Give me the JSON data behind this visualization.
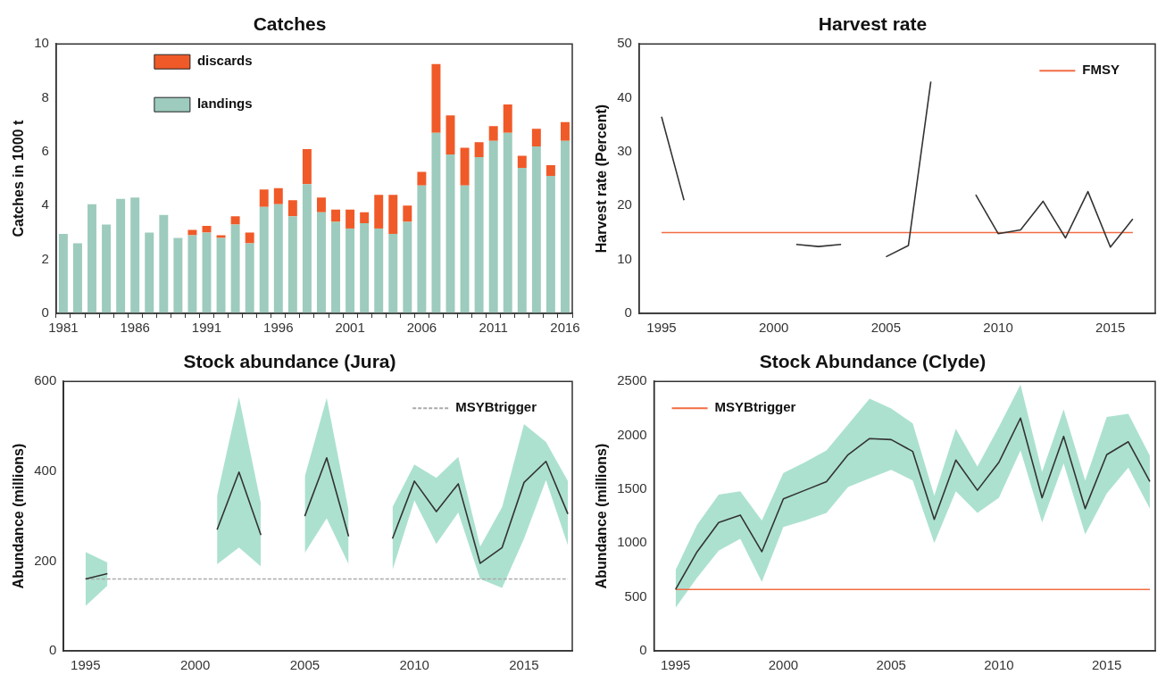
{
  "chart_data": [
    {
      "type": "bar",
      "title": "Catches",
      "ylabel": "Catches in 1000 t",
      "stacked": true,
      "legend": "top left",
      "categories": [
        "1981",
        null,
        null,
        null,
        null,
        "1986",
        null,
        null,
        null,
        null,
        "1991",
        null,
        null,
        null,
        null,
        "1996",
        null,
        null,
        null,
        null,
        "2001",
        null,
        null,
        null,
        null,
        "2006",
        null,
        null,
        null,
        null,
        "2011",
        null,
        null,
        null,
        null,
        "2016"
      ],
      "ylim": [
        0,
        10
      ],
      "yticks": [
        0,
        2,
        4,
        6,
        8,
        10
      ],
      "series": [
        {
          "name": "landings",
          "color": "#9dcbbd",
          "values": [
            2.95,
            2.6,
            4.05,
            3.3,
            4.25,
            4.3,
            3.0,
            3.65,
            2.8,
            2.9,
            3.0,
            2.8,
            3.3,
            2.6,
            3.95,
            4.05,
            3.6,
            4.8,
            3.75,
            3.4,
            3.15,
            3.35,
            3.15,
            2.95,
            3.4,
            4.75,
            6.7,
            5.9,
            4.75,
            5.8,
            6.4,
            6.7,
            5.4,
            6.2,
            5.1,
            6.4
          ]
        },
        {
          "name": "discards",
          "color": "#f05a28",
          "values": [
            0,
            0,
            0,
            0,
            0,
            0,
            0,
            0,
            0,
            0.2,
            0.25,
            0.1,
            0.3,
            0.4,
            0.65,
            0.6,
            0.6,
            1.3,
            0.55,
            0.45,
            0.7,
            0.4,
            1.25,
            1.45,
            0.6,
            0.5,
            2.55,
            1.45,
            1.4,
            0.55,
            0.55,
            1.05,
            0.45,
            0.65,
            0.4,
            0.7
          ]
        }
      ]
    },
    {
      "type": "line",
      "title": "Harvest rate",
      "ylabel": "Harvest rate (Percent)",
      "legend": "top right",
      "x": [
        1995,
        1996,
        1997,
        1998,
        1999,
        2000,
        2001,
        2002,
        2003,
        2004,
        2005,
        2006,
        2007,
        2008,
        2009,
        2010,
        2011,
        2012,
        2013,
        2014,
        2015,
        2016
      ],
      "xlim": [
        1994,
        2017
      ],
      "xticks": [
        1995,
        2000,
        2005,
        2010,
        2015
      ],
      "ylim": [
        0,
        50
      ],
      "yticks": [
        0,
        10,
        20,
        30,
        40,
        50
      ],
      "series": [
        {
          "color": "#333333",
          "values": [
            36.5,
            21,
            null,
            null,
            null,
            null,
            12.8,
            12.4,
            12.8,
            null,
            10.5,
            12.6,
            43,
            null,
            22,
            14.8,
            15.5,
            20.8,
            14.0,
            22.6,
            12.3,
            17.5
          ]
        },
        {
          "name": "FMSY",
          "color": "#f26b43",
          "x": [
            1995,
            2016
          ],
          "values": [
            15,
            15
          ]
        }
      ]
    },
    {
      "type": "line",
      "title": "Stock abundance (Jura)",
      "ylabel": "Abundance (millions)",
      "legend": "top right",
      "x": [
        1995,
        1996,
        1997,
        1998,
        1999,
        2000,
        2001,
        2002,
        2003,
        2004,
        2005,
        2006,
        2007,
        2008,
        2009,
        2010,
        2011,
        2012,
        2013,
        2014,
        2015,
        2016,
        2017
      ],
      "xlim": [
        1994,
        2017.2
      ],
      "xticks": [
        1995,
        2000,
        2005,
        2010,
        2015
      ],
      "ylim": [
        0,
        600
      ],
      "yticks": [
        0,
        200,
        400,
        600
      ],
      "series": [
        {
          "color": "#333333",
          "values": [
            160,
            172,
            null,
            null,
            null,
            null,
            270,
            398,
            258,
            null,
            300,
            430,
            255,
            null,
            250,
            378,
            310,
            372,
            195,
            230,
            375,
            422,
            305
          ],
          "lower": [
            100,
            145,
            null,
            null,
            null,
            null,
            193,
            230,
            188,
            null,
            218,
            295,
            193,
            null,
            180,
            335,
            238,
            308,
            160,
            140,
            250,
            380,
            235
          ],
          "upper": [
            220,
            197,
            null,
            null,
            null,
            null,
            345,
            565,
            328,
            null,
            388,
            563,
            313,
            null,
            320,
            415,
            385,
            432,
            232,
            320,
            505,
            465,
            378
          ]
        },
        {
          "name": "MSYBtrigger",
          "color": "#aaaaaa",
          "line_style": "dashed",
          "x": [
            1995,
            2017
          ],
          "values": [
            160,
            160
          ]
        }
      ]
    },
    {
      "type": "line",
      "title": "Stock Abundance (Clyde)",
      "ylabel": "Abundance (millions)",
      "legend": "top left",
      "x": [
        1995,
        1996,
        1997,
        1998,
        1999,
        2000,
        2001,
        2002,
        2003,
        2004,
        2005,
        2006,
        2007,
        2008,
        2009,
        2010,
        2011,
        2012,
        2013,
        2014,
        2015,
        2016,
        2017
      ],
      "xlim": [
        1994,
        2017.25
      ],
      "xticks": [
        1995,
        2000,
        2005,
        2010,
        2015
      ],
      "ylim": [
        0,
        2500
      ],
      "yticks": [
        0,
        500,
        1000,
        1500,
        2000,
        2500
      ],
      "series": [
        {
          "color": "#333333",
          "values": [
            570,
            920,
            1190,
            1260,
            920,
            1410,
            1490,
            1570,
            1820,
            1970,
            1960,
            1850,
            1220,
            1770,
            1490,
            1750,
            2160,
            1420,
            1990,
            1320,
            1820,
            1940,
            1570
          ],
          "lower": [
            400,
            680,
            930,
            1040,
            640,
            1150,
            1210,
            1280,
            1520,
            1600,
            1680,
            1580,
            1000,
            1480,
            1280,
            1420,
            1860,
            1190,
            1740,
            1080,
            1460,
            1700,
            1320
          ],
          "upper": [
            750,
            1170,
            1450,
            1480,
            1210,
            1650,
            1750,
            1860,
            2100,
            2340,
            2250,
            2110,
            1440,
            2060,
            1710,
            2080,
            2470,
            1660,
            2240,
            1580,
            2170,
            2200,
            1810
          ]
        },
        {
          "name": "MSYBtrigger",
          "color": "#f26b43",
          "x": [
            1995,
            2017
          ],
          "values": [
            570,
            570
          ]
        }
      ]
    }
  ]
}
